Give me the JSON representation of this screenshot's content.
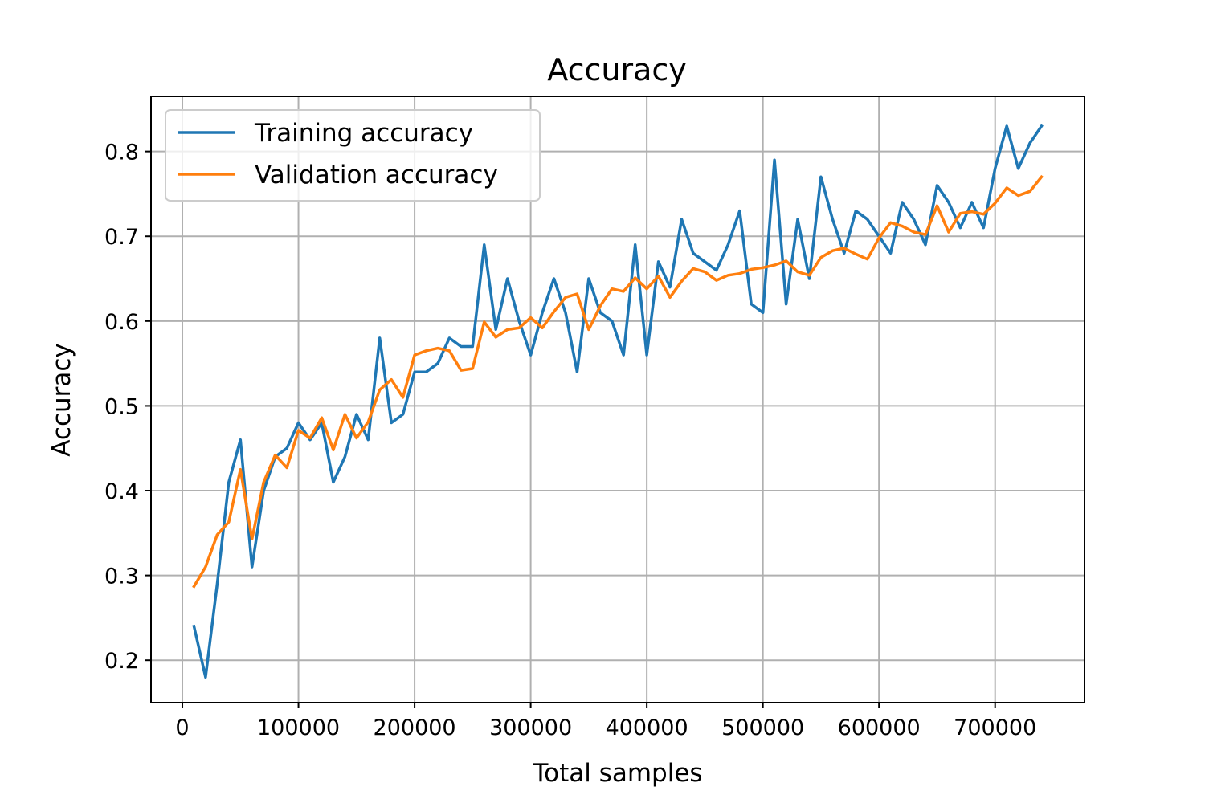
{
  "chart_data": {
    "type": "line",
    "title": "Accuracy",
    "xlabel": "Total samples",
    "ylabel": "Accuracy",
    "xlim": [
      -27000,
      777000
    ],
    "ylim": [
      0.15,
      0.865
    ],
    "xticks": [
      0,
      100000,
      200000,
      300000,
      400000,
      500000,
      600000,
      700000
    ],
    "yticks": [
      0.2,
      0.3,
      0.4,
      0.5,
      0.6,
      0.7,
      0.8
    ],
    "grid": true,
    "legend_position": "upper-left",
    "x": [
      10000,
      20000,
      30000,
      40000,
      50000,
      60000,
      70000,
      80000,
      90000,
      100000,
      110000,
      120000,
      130000,
      140000,
      150000,
      160000,
      170000,
      180000,
      190000,
      200000,
      210000,
      220000,
      230000,
      240000,
      250000,
      260000,
      270000,
      280000,
      290000,
      300000,
      310000,
      320000,
      330000,
      340000,
      350000,
      360000,
      370000,
      380000,
      390000,
      400000,
      410000,
      420000,
      430000,
      440000,
      450000,
      460000,
      470000,
      480000,
      490000,
      500000,
      510000,
      520000,
      530000,
      540000,
      550000,
      560000,
      570000,
      580000,
      590000,
      600000,
      610000,
      620000,
      630000,
      640000,
      650000,
      660000,
      670000,
      680000,
      690000,
      700000,
      710000,
      720000,
      730000,
      740000
    ],
    "series": [
      {
        "name": "Training accuracy",
        "color": "#1f77b4",
        "values": [
          0.24,
          0.18,
          0.29,
          0.41,
          0.46,
          0.31,
          0.4,
          0.44,
          0.45,
          0.48,
          0.46,
          0.48,
          0.41,
          0.44,
          0.49,
          0.46,
          0.58,
          0.48,
          0.49,
          0.54,
          0.54,
          0.55,
          0.58,
          0.57,
          0.57,
          0.69,
          0.59,
          0.65,
          0.6,
          0.56,
          0.61,
          0.65,
          0.61,
          0.54,
          0.65,
          0.61,
          0.6,
          0.56,
          0.69,
          0.56,
          0.67,
          0.64,
          0.72,
          0.68,
          0.67,
          0.66,
          0.69,
          0.73,
          0.62,
          0.61,
          0.79,
          0.62,
          0.72,
          0.65,
          0.77,
          0.72,
          0.68,
          0.73,
          0.72,
          0.7,
          0.68,
          0.74,
          0.72,
          0.69,
          0.76,
          0.74,
          0.71,
          0.74,
          0.71,
          0.78,
          0.83,
          0.78,
          0.81,
          0.83
        ]
      },
      {
        "name": "Validation accuracy",
        "color": "#ff7f0e",
        "values": [
          0.287,
          0.31,
          0.348,
          0.363,
          0.425,
          0.343,
          0.41,
          0.442,
          0.427,
          0.471,
          0.462,
          0.486,
          0.448,
          0.49,
          0.462,
          0.481,
          0.519,
          0.531,
          0.51,
          0.56,
          0.565,
          0.568,
          0.565,
          0.542,
          0.544,
          0.599,
          0.581,
          0.59,
          0.592,
          0.604,
          0.592,
          0.611,
          0.628,
          0.632,
          0.59,
          0.618,
          0.638,
          0.635,
          0.651,
          0.638,
          0.653,
          0.628,
          0.647,
          0.662,
          0.658,
          0.648,
          0.654,
          0.656,
          0.661,
          0.663,
          0.666,
          0.671,
          0.658,
          0.654,
          0.675,
          0.683,
          0.686,
          0.679,
          0.673,
          0.698,
          0.716,
          0.712,
          0.705,
          0.702,
          0.736,
          0.705,
          0.727,
          0.729,
          0.726,
          0.739,
          0.757,
          0.748,
          0.753,
          0.77
        ]
      }
    ]
  }
}
